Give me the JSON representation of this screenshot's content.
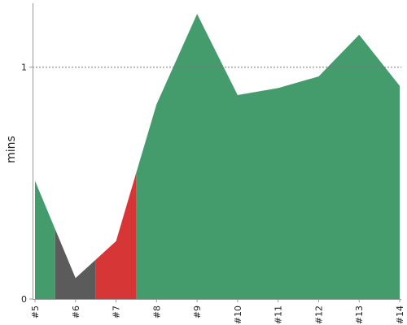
{
  "chart_data": {
    "type": "area",
    "title": "",
    "xlabel": "",
    "ylabel": "mins",
    "x": [
      "#5",
      "#6",
      "#7",
      "#8",
      "#9",
      "#10",
      "#11",
      "#12",
      "#13",
      "#14"
    ],
    "values": [
      0.51,
      0.09,
      0.25,
      0.84,
      1.23,
      0.88,
      0.91,
      0.96,
      1.14,
      0.92
    ],
    "yticks": [
      0,
      1
    ],
    "ylim": [
      0,
      1.29
    ],
    "reference_line": {
      "value": 1,
      "style": "dotted"
    },
    "segments": [
      {
        "from": "#5",
        "to": "#5.5",
        "color": "#449c6c"
      },
      {
        "from": "#5.5",
        "to": "#6.5",
        "color": "#5b5b5b"
      },
      {
        "from": "#6.5",
        "to": "#7.5",
        "color": "#d63636"
      },
      {
        "from": "#7.5",
        "to": "#14",
        "color": "#449c6c"
      }
    ],
    "grid": false,
    "legend": "none"
  },
  "colors": {
    "green": "#449c6c",
    "gray": "#5b5b5b",
    "red": "#d63636",
    "axis": "#555555"
  }
}
